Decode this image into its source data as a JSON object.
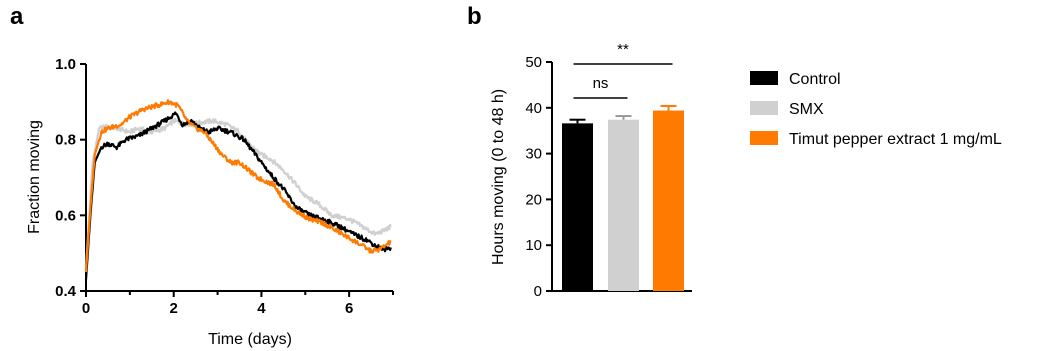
{
  "chart_data": [
    {
      "panel": "a",
      "type": "line",
      "xlabel": "Time (days)",
      "ylabel": "Fraction moving",
      "xlim": [
        0,
        7
      ],
      "ylim": [
        0.4,
        1.0
      ],
      "xticks": [
        0,
        2,
        4,
        6
      ],
      "yticks": [
        "0.4",
        "0.6",
        "0.8",
        "1.0"
      ],
      "grid": false,
      "series": [
        {
          "name": "SMX",
          "color": "#d0d0d0",
          "points": [
            [
              0,
              0.46
            ],
            [
              0.15,
              0.74
            ],
            [
              0.3,
              0.83
            ],
            [
              0.5,
              0.835
            ],
            [
              0.7,
              0.83
            ],
            [
              1.0,
              0.82
            ],
            [
              1.2,
              0.83
            ],
            [
              1.5,
              0.82
            ],
            [
              1.8,
              0.83
            ],
            [
              2.0,
              0.85
            ],
            [
              2.3,
              0.84
            ],
            [
              2.6,
              0.845
            ],
            [
              2.9,
              0.85
            ],
            [
              3.2,
              0.84
            ],
            [
              3.5,
              0.82
            ],
            [
              3.7,
              0.79
            ],
            [
              4.0,
              0.76
            ],
            [
              4.2,
              0.75
            ],
            [
              4.5,
              0.72
            ],
            [
              4.8,
              0.68
            ],
            [
              5.0,
              0.65
            ],
            [
              5.3,
              0.63
            ],
            [
              5.6,
              0.6
            ],
            [
              6.0,
              0.59
            ],
            [
              6.3,
              0.57
            ],
            [
              6.6,
              0.55
            ],
            [
              6.8,
              0.56
            ],
            [
              6.95,
              0.57
            ]
          ]
        },
        {
          "name": "Control",
          "color": "#000000",
          "points": [
            [
              0,
              0.43
            ],
            [
              0.1,
              0.6
            ],
            [
              0.2,
              0.74
            ],
            [
              0.35,
              0.78
            ],
            [
              0.5,
              0.79
            ],
            [
              0.7,
              0.78
            ],
            [
              0.9,
              0.8
            ],
            [
              1.2,
              0.81
            ],
            [
              1.5,
              0.83
            ],
            [
              1.8,
              0.85
            ],
            [
              2.05,
              0.87
            ],
            [
              2.2,
              0.84
            ],
            [
              2.4,
              0.85
            ],
            [
              2.6,
              0.83
            ],
            [
              2.8,
              0.82
            ],
            [
              3.0,
              0.83
            ],
            [
              3.3,
              0.82
            ],
            [
              3.6,
              0.8
            ],
            [
              3.8,
              0.77
            ],
            [
              4.0,
              0.74
            ],
            [
              4.2,
              0.71
            ],
            [
              4.5,
              0.67
            ],
            [
              4.8,
              0.62
            ],
            [
              5.1,
              0.6
            ],
            [
              5.4,
              0.59
            ],
            [
              5.8,
              0.57
            ],
            [
              6.1,
              0.55
            ],
            [
              6.4,
              0.535
            ],
            [
              6.6,
              0.52
            ],
            [
              6.8,
              0.51
            ],
            [
              6.95,
              0.515
            ]
          ]
        },
        {
          "name": "Timut pepper extract 1 mg/mL",
          "color": "#ff7a00",
          "points": [
            [
              0,
              0.45
            ],
            [
              0.1,
              0.62
            ],
            [
              0.2,
              0.76
            ],
            [
              0.35,
              0.82
            ],
            [
              0.5,
              0.83
            ],
            [
              0.8,
              0.84
            ],
            [
              1.0,
              0.86
            ],
            [
              1.3,
              0.88
            ],
            [
              1.6,
              0.89
            ],
            [
              1.9,
              0.9
            ],
            [
              2.1,
              0.89
            ],
            [
              2.3,
              0.85
            ],
            [
              2.5,
              0.83
            ],
            [
              2.7,
              0.82
            ],
            [
              2.9,
              0.79
            ],
            [
              3.1,
              0.76
            ],
            [
              3.3,
              0.74
            ],
            [
              3.5,
              0.74
            ],
            [
              3.7,
              0.72
            ],
            [
              3.9,
              0.7
            ],
            [
              4.1,
              0.69
            ],
            [
              4.3,
              0.68
            ],
            [
              4.5,
              0.64
            ],
            [
              4.8,
              0.61
            ],
            [
              5.1,
              0.59
            ],
            [
              5.4,
              0.58
            ],
            [
              5.7,
              0.56
            ],
            [
              6.0,
              0.54
            ],
            [
              6.3,
              0.52
            ],
            [
              6.5,
              0.505
            ],
            [
              6.7,
              0.51
            ],
            [
              6.95,
              0.53
            ]
          ]
        }
      ]
    },
    {
      "panel": "b",
      "type": "bar",
      "ylabel": "Hours moving (0 to 48 h)",
      "ylim": [
        0,
        50
      ],
      "yticks": [
        "0",
        "10",
        "20",
        "30",
        "40",
        "50"
      ],
      "categories": [
        "Control",
        "SMX",
        "Timut pepper extract 1 mg/mL"
      ],
      "values": [
        36.6,
        37.4,
        39.4
      ],
      "errors": [
        0.8,
        0.8,
        1.0
      ],
      "colors": [
        "#000000",
        "#d0d0d0",
        "#ff7a00"
      ],
      "annotations": [
        {
          "label": "ns",
          "from": 0,
          "to": 1
        },
        {
          "label": "**",
          "from": 0,
          "to": 2
        }
      ]
    }
  ],
  "legend": {
    "position": "right",
    "entries": [
      {
        "label": "Control",
        "color": "#000000"
      },
      {
        "label": "SMX",
        "color": "#d0d0d0"
      },
      {
        "label": "Timut pepper extract 1 mg/mL",
        "color": "#ff7a00"
      }
    ]
  }
}
